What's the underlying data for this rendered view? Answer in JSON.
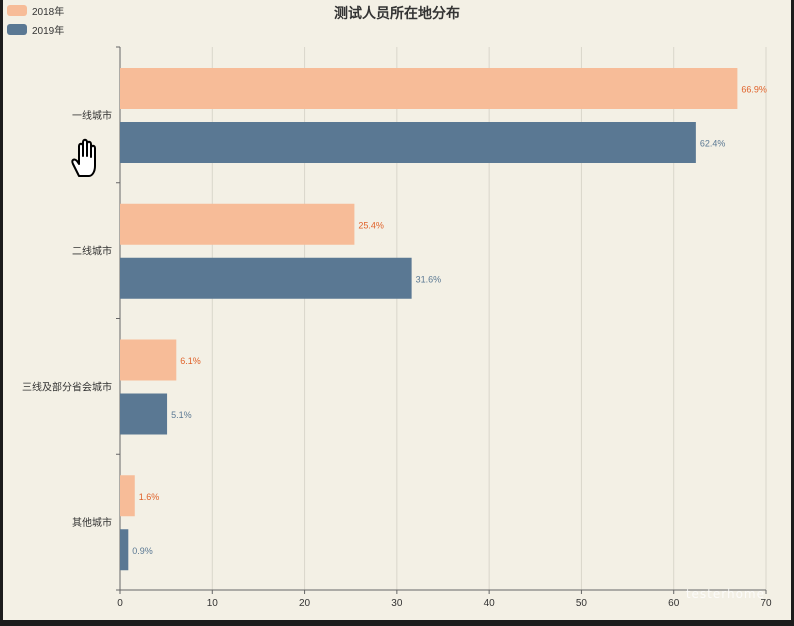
{
  "chart_data": {
    "type": "bar",
    "orientation": "horizontal",
    "title": "测试人员所在地分布",
    "categories": [
      "一线城市",
      "二线城市",
      "三线及部分省会城市",
      "其他城市"
    ],
    "series": [
      {
        "name": "2018年",
        "values": [
          66.9,
          25.4,
          6.1,
          1.6
        ],
        "labels": [
          "66.9%",
          "25.4%",
          "6.1%",
          "1.6%"
        ]
      },
      {
        "name": "2019年",
        "values": [
          62.4,
          31.6,
          5.1,
          0.9
        ],
        "labels": [
          "62.4%",
          "31.6%",
          "5.1%",
          "0.9%"
        ]
      }
    ],
    "xlim": [
      0,
      70
    ],
    "xticks": [
      0,
      10,
      20,
      30,
      40,
      50,
      60,
      70
    ],
    "grid": true,
    "legend_position": "top-left"
  },
  "colors": {
    "series_2018": "#f7bc98",
    "series_2019": "#5a7893",
    "label_2018": "#e0622a",
    "label_2019": "#5a7893",
    "background": "#f3f0e5",
    "grid": "#d9d6cb",
    "axis": "#666666"
  },
  "legend": {
    "items": [
      {
        "label": "2018年",
        "color": "#f7bc98"
      },
      {
        "label": "2019年",
        "color": "#5a7893"
      }
    ]
  },
  "watermark": "testerhome"
}
